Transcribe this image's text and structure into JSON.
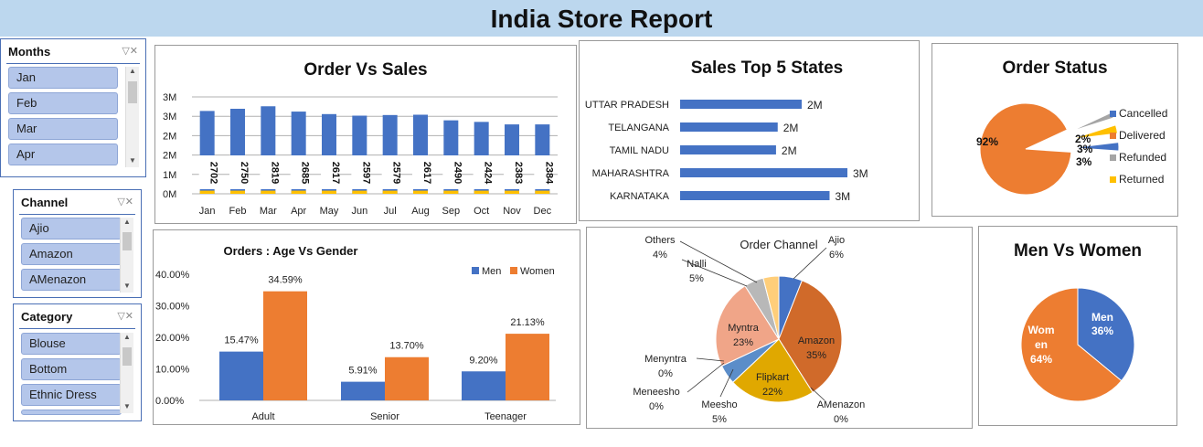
{
  "report_title": "India Store Report",
  "colors": {
    "accent": "#4472c4",
    "orange": "#ed7d31",
    "gray": "#a5a5a5",
    "yellow": "#ffc000"
  },
  "slicers": {
    "months": {
      "title": "Months",
      "items": [
        "Jan",
        "Feb",
        "Mar",
        "Apr"
      ]
    },
    "channel": {
      "title": "Channel",
      "items": [
        "Ajio",
        "Amazon",
        "AMenazon"
      ]
    },
    "category": {
      "title": "Category",
      "items": [
        "Blouse",
        "Bottom",
        "Ethnic Dress"
      ]
    }
  },
  "filter_icon": "clear-filter-icon",
  "chart_data": [
    {
      "id": "order_vs_sales",
      "type": "bar",
      "title": "Order Vs Sales",
      "categories": [
        "Jan",
        "Feb",
        "Mar",
        "Apr",
        "May",
        "Jun",
        "Jul",
        "Aug",
        "Sep",
        "Oct",
        "Nov",
        "Dec"
      ],
      "series": [
        {
          "values": [
            2.65,
            2.72,
            2.8,
            2.63,
            2.55,
            2.5,
            2.52,
            2.53,
            2.35,
            2.3,
            2.22,
            2.22
          ]
        },
        {
          "values": [
            0.1,
            0.1,
            0.1,
            0.1,
            0.1,
            0.1,
            0.1,
            0.1,
            0.1,
            0.1,
            0.1,
            0.1
          ]
        }
      ],
      "data_labels": [
        "2702",
        "2750",
        "2819",
        "2685",
        "2617",
        "2597",
        "2579",
        "2617",
        "2490",
        "2424",
        "2383",
        "2384"
      ],
      "yticks": [
        "0M",
        "1M",
        "2M",
        "2M",
        "3M",
        "3M"
      ],
      "ylim": [
        0,
        3.1
      ],
      "grid": true
    },
    {
      "id": "sales_top5_states",
      "type": "bar",
      "orientation": "horizontal",
      "title": "Sales Top 5 States",
      "categories": [
        "UTTAR PRADESH",
        "TELANGANA",
        "TAMIL NADU",
        "MAHARASHTRA",
        "KARNATAKA"
      ],
      "values": [
        2.18,
        1.75,
        1.72,
        3.0,
        2.68
      ],
      "data_labels": [
        "2M",
        "2M",
        "2M",
        "3M",
        "3M"
      ]
    },
    {
      "id": "order_status",
      "type": "pie",
      "title": "Order Status",
      "labels": [
        "Cancelled",
        "Delivered",
        "Refunded",
        "Returned"
      ],
      "values": [
        3,
        92,
        2,
        3
      ],
      "data_labels": [
        "3%",
        "92%",
        "2%",
        "3%"
      ],
      "legend": "right"
    },
    {
      "id": "age_vs_gender",
      "type": "bar",
      "title": "Orders : Age Vs Gender",
      "categories": [
        "Adult",
        "Senior",
        "Teenager"
      ],
      "series": [
        {
          "name": "Men",
          "values": [
            15.47,
            5.91,
            9.2
          ],
          "labels": [
            "15.47%",
            "5.91%",
            "9.20%"
          ]
        },
        {
          "name": "Women",
          "values": [
            34.59,
            13.7,
            21.13
          ],
          "labels": [
            "34.59%",
            "13.70%",
            "21.13%"
          ]
        }
      ],
      "yticks": [
        "0.00%",
        "10.00%",
        "20.00%",
        "30.00%",
        "40.00%"
      ],
      "ylim": [
        0,
        40
      ],
      "legend": "top-right"
    },
    {
      "id": "order_channel",
      "type": "pie",
      "title": "Order Channel",
      "labels": [
        "Ajio",
        "Amazon",
        "Flipkart",
        "Meesho",
        "Meneesho",
        "Menyntra",
        "Myntra",
        "Nalli",
        "Others",
        "AMenazon"
      ],
      "values": [
        6,
        35,
        22,
        5,
        0,
        0,
        23,
        5,
        4,
        0
      ],
      "data_labels": [
        {
          "name": "Ajio",
          "pct": "6%"
        },
        {
          "name": "Amazon",
          "pct": "35%"
        },
        {
          "name": "Flipkart",
          "pct": "22%"
        },
        {
          "name": "Meesho",
          "pct": "5%"
        },
        {
          "name": "Meneesho",
          "pct": "0%"
        },
        {
          "name": "Menyntra",
          "pct": "0%"
        },
        {
          "name": "Myntra",
          "pct": "23%"
        },
        {
          "name": "Nalli",
          "pct": "5%"
        },
        {
          "name": "Others",
          "pct": "4%"
        },
        {
          "name": "AMenazon",
          "pct": "0%"
        }
      ]
    },
    {
      "id": "men_vs_women",
      "type": "pie",
      "title": "Men Vs Women",
      "labels": [
        "Men",
        "Women"
      ],
      "values": [
        36,
        64
      ],
      "data_labels": [
        {
          "name": "Men",
          "pct": "36%"
        },
        {
          "name": "Wom en",
          "pct": "64%"
        }
      ]
    }
  ]
}
